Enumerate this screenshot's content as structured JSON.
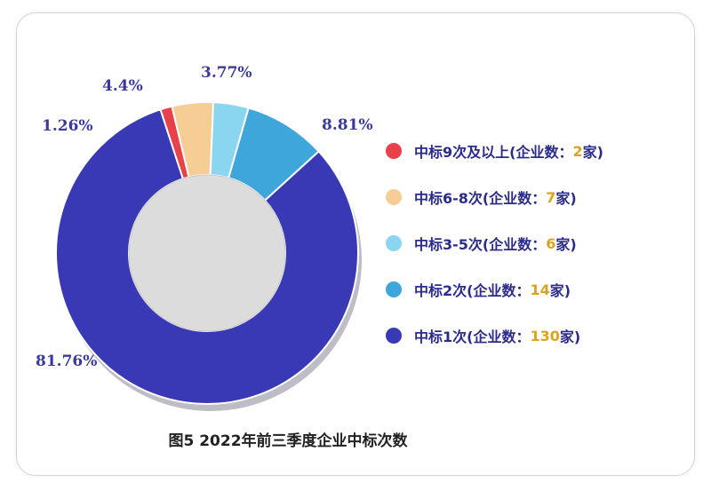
{
  "chart_data": {
    "type": "pie",
    "variant": "donut",
    "title": "图5 2022年前三季度企业中标次数",
    "slices": [
      {
        "label": "中标9次及以上",
        "count_prefix": "(企业数：",
        "count": "2",
        "count_suffix": "家)",
        "percent_label": "1.26%",
        "value": 1.26,
        "color": "#e8414a"
      },
      {
        "label": "中标6-8次",
        "count_prefix": "(企业数：",
        "count": "7",
        "count_suffix": "家)",
        "percent_label": "4.4%",
        "value": 4.4,
        "color": "#f6cd95"
      },
      {
        "label": "中标3-5次",
        "count_prefix": "(企业数：",
        "count": "6",
        "count_suffix": "家)",
        "percent_label": "3.77%",
        "value": 3.77,
        "color": "#8ad6f0"
      },
      {
        "label": "中标2次",
        "count_prefix": "(企业数：",
        "count": "14",
        "count_suffix": "家)",
        "percent_label": "8.81%",
        "value": 8.81,
        "color": "#3fa6dc"
      },
      {
        "label": "中标1次",
        "count_prefix": "(企业数：",
        "count": "130",
        "count_suffix": "家)",
        "percent_label": "81.76%",
        "value": 81.76,
        "color": "#3939b5"
      }
    ],
    "legend_position": "right"
  }
}
